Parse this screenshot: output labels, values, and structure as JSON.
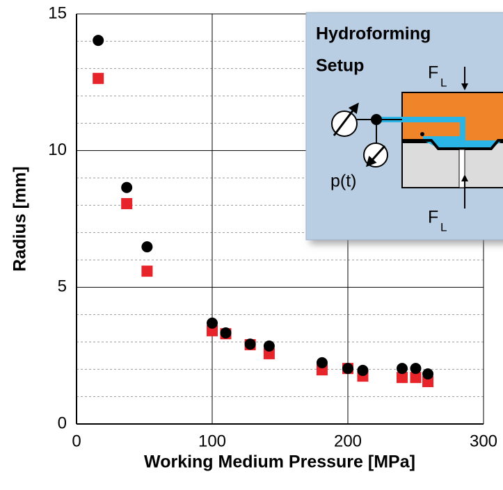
{
  "chart_data": {
    "type": "scatter",
    "x_label": "Working Medium Pressure [MPa]",
    "y_label": "Radius [mm]",
    "xlim": [
      0,
      300
    ],
    "ylim": [
      0,
      15
    ],
    "xticks": [
      0,
      100,
      200,
      300
    ],
    "yticks": [
      0,
      5,
      10,
      15
    ],
    "minor_yticks": [
      1,
      2,
      3,
      4,
      6,
      7,
      8,
      9,
      11,
      12,
      13,
      14
    ],
    "grid": true,
    "series": [
      {
        "color": "#000000",
        "marker": "circle",
        "x": [
          16,
          37,
          52,
          100,
          110,
          128,
          142,
          181,
          200,
          211,
          240,
          250,
          259
        ],
        "values": [
          14.03,
          8.65,
          6.48,
          3.69,
          3.33,
          2.92,
          2.85,
          2.24,
          2.03,
          1.96,
          2.03,
          2.03,
          1.83
        ]
      },
      {
        "color": "#e8242b",
        "marker": "square",
        "x": [
          16,
          37,
          52,
          100,
          110,
          128,
          142,
          181,
          200,
          211,
          240,
          250,
          259
        ],
        "values": [
          12.64,
          8.06,
          5.59,
          3.41,
          3.3,
          2.9,
          2.57,
          1.98,
          2.03,
          1.75,
          1.7,
          1.7,
          1.55
        ]
      }
    ]
  },
  "inset": {
    "title_line1": "Hydroforming",
    "title_line2": "Setup",
    "force_top": {
      "symbol": "F",
      "subscript": "L"
    },
    "force_bottom": {
      "symbol": "F",
      "subscript": "L"
    },
    "pressure": "p(t)"
  }
}
